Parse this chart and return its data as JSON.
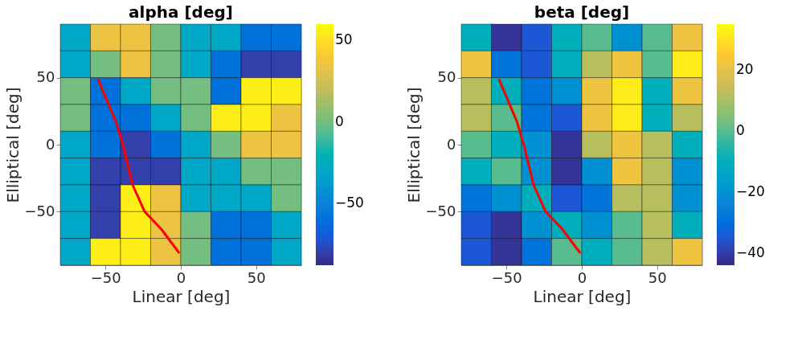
{
  "chart_data": [
    {
      "type": "heatmap",
      "title": "alpha [deg]",
      "xlabel": "Linear [deg]",
      "ylabel": "Elliptical [deg]",
      "xlim": [
        -80,
        80
      ],
      "ylim": [
        -90,
        90
      ],
      "xticks": [
        -50,
        0,
        50
      ],
      "yticks": [
        -50,
        0,
        50
      ],
      "clim": [
        -88,
        60
      ],
      "cticks": [
        -50,
        0,
        50
      ],
      "cells": [
        [
          -30,
          35,
          35,
          0,
          -30,
          -30,
          -60,
          -60
        ],
        [
          -30,
          0,
          35,
          0,
          -30,
          -60,
          -80,
          -80
        ],
        [
          0,
          -60,
          -30,
          0,
          0,
          -60,
          55,
          55
        ],
        [
          0,
          -60,
          -60,
          -30,
          0,
          55,
          55,
          35
        ],
        [
          -30,
          -60,
          -80,
          -60,
          -30,
          0,
          35,
          35
        ],
        [
          -30,
          -80,
          -80,
          -80,
          -30,
          -30,
          0,
          0
        ],
        [
          -30,
          -80,
          55,
          35,
          -30,
          -30,
          -30,
          0
        ],
        [
          -30,
          -80,
          55,
          35,
          0,
          -60,
          -60,
          -30
        ],
        [
          -30,
          55,
          55,
          35,
          0,
          -60,
          -60,
          -30
        ]
      ],
      "series": [
        {
          "type": "line",
          "color": "#ff0000",
          "x": [
            -55,
            -43,
            -38,
            -32,
            -24,
            -13,
            -1
          ],
          "values": [
            49,
            17,
            -2,
            -30,
            -50,
            -63,
            -81
          ]
        }
      ]
    },
    {
      "type": "heatmap",
      "title": "beta [deg]",
      "xlabel": "Linear [deg]",
      "ylabel": "Elliptical [deg]",
      "xlim": [
        -80,
        80
      ],
      "ylim": [
        -90,
        90
      ],
      "xticks": [
        -50,
        0,
        50
      ],
      "yticks": [
        -50,
        0,
        50
      ],
      "clim": [
        -44,
        35
      ],
      "cticks": [
        -40,
        -20,
        0,
        20
      ],
      "cells": [
        [
          -10,
          -42,
          -35,
          -10,
          0,
          -20,
          0,
          22
        ],
        [
          22,
          -28,
          -35,
          -10,
          12,
          22,
          0,
          32
        ],
        [
          12,
          -10,
          -28,
          -20,
          22,
          32,
          -10,
          22
        ],
        [
          12,
          0,
          -28,
          -35,
          22,
          32,
          -10,
          12
        ],
        [
          0,
          -10,
          -20,
          -42,
          12,
          22,
          12,
          -10
        ],
        [
          -10,
          0,
          -20,
          -42,
          -20,
          22,
          12,
          -20
        ],
        [
          -28,
          -20,
          -10,
          -35,
          -28,
          12,
          12,
          -20
        ],
        [
          -35,
          -42,
          -20,
          -10,
          -20,
          0,
          12,
          -10
        ],
        [
          -35,
          -42,
          -28,
          0,
          -10,
          0,
          12,
          22
        ]
      ],
      "series": [
        {
          "type": "line",
          "color": "#ff0000",
          "x": [
            -55,
            -43,
            -38,
            -32,
            -24,
            -13,
            -1
          ],
          "values": [
            49,
            17,
            -2,
            -30,
            -50,
            -63,
            -81
          ]
        }
      ]
    }
  ]
}
